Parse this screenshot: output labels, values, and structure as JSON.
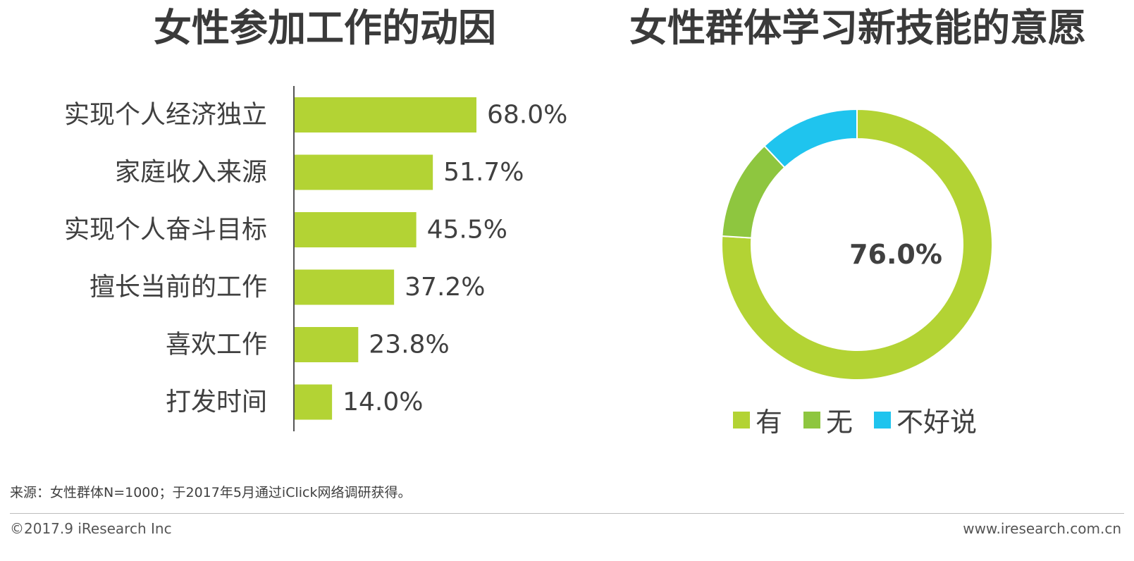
{
  "colors": {
    "bar": "#b3d334",
    "donut_yes": "#b3d334",
    "donut_no": "#8ec63f",
    "donut_unsure": "#1fc4ee",
    "axis": "#555555"
  },
  "chart_data": [
    {
      "type": "bar",
      "orientation": "horizontal",
      "title": "女性参加工作的动因",
      "categories": [
        "实现个人经济独立",
        "家庭收入来源",
        "实现个人奋斗目标",
        "擅长当前的工作",
        "喜欢工作",
        "打发时间"
      ],
      "values": [
        68.0,
        51.7,
        45.5,
        37.2,
        23.8,
        14.0
      ],
      "value_labels": [
        "68.0%",
        "51.7%",
        "45.5%",
        "37.2%",
        "23.8%",
        "14.0%"
      ],
      "unit": "%",
      "grid": false,
      "legend": "none"
    },
    {
      "type": "pie",
      "style": "donut",
      "title": "女性群体学习新技能的意愿",
      "categories": [
        "有",
        "无",
        "不好说"
      ],
      "values": [
        76.0,
        12.0,
        12.0
      ],
      "center_label": "76.0%",
      "legend": "bottom"
    }
  ],
  "source_note": "来源：女性群体N=1000；于2017年5月通过iClick网络调研获得。",
  "footer": {
    "copyright": "©2017.9 iResearch Inc",
    "website": "www.iresearch.com.cn"
  }
}
